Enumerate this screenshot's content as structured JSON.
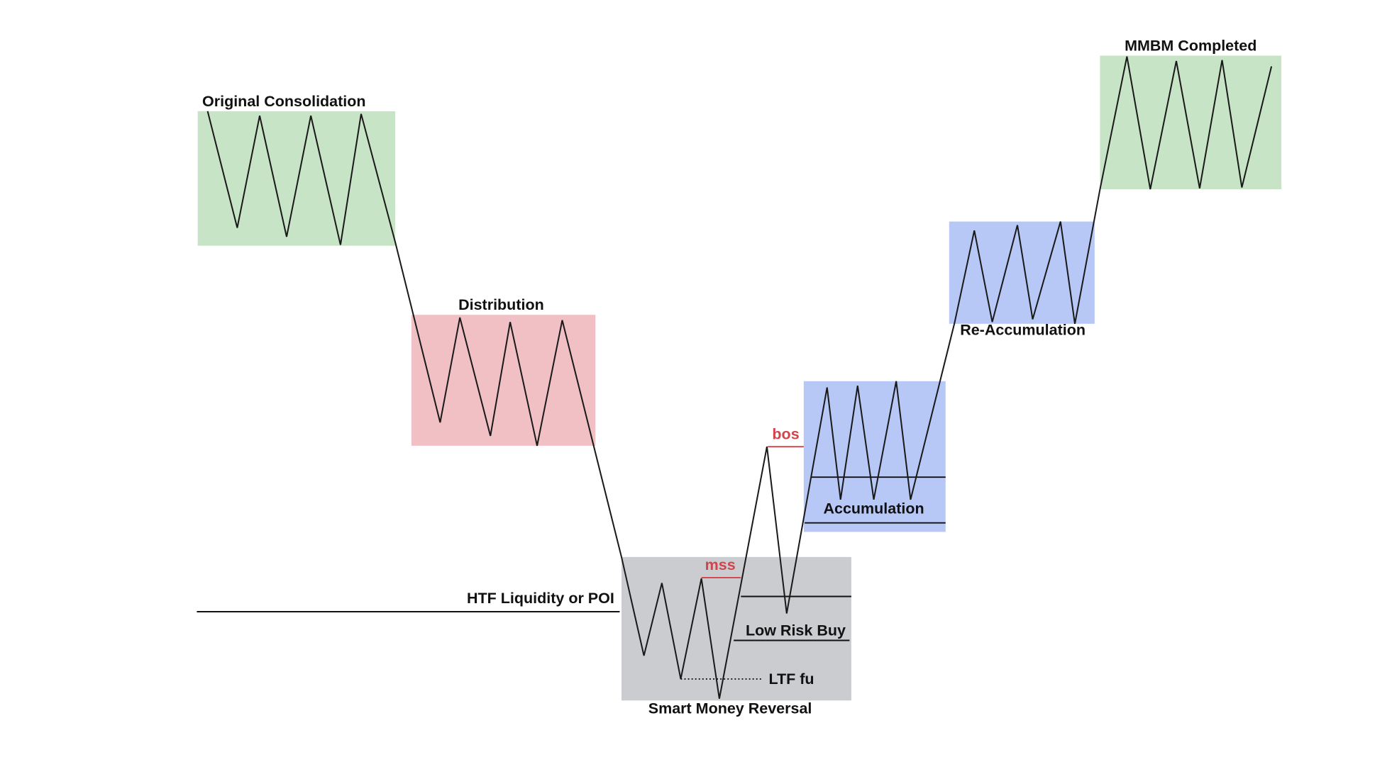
{
  "labels": {
    "original_consolidation": "Original Consolidation",
    "distribution": "Distribution",
    "htf_liquidity": "HTF Liquidity or POI",
    "smart_money_reversal": "Smart Money Reversal",
    "mss": "mss",
    "bos": "bos",
    "low_risk_buy": "Low Risk Buy",
    "ltf_fu": "LTF fu",
    "accumulation": "Accumulation",
    "re_accumulation": "Re-Accumulation",
    "mmbm_completed": "MMBM Completed"
  }
}
